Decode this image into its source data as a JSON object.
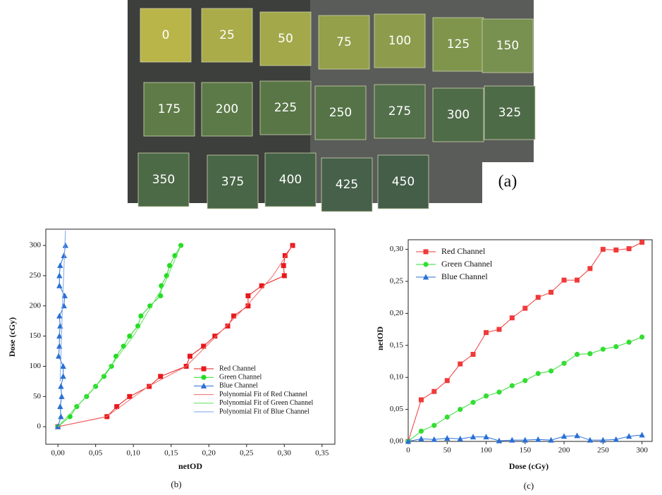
{
  "photo": {
    "labels": [
      "0",
      "25",
      "50",
      "75",
      "100",
      "125",
      "150",
      "175",
      "200",
      "225",
      "250",
      "275",
      "300",
      "325",
      "350",
      "375",
      "400",
      "425",
      "450"
    ],
    "caption": "(a)"
  },
  "chart_data": [
    {
      "type": "line",
      "caption": "(b)",
      "x_label": "netOD",
      "y_label": "Dose (cGy)",
      "xlim": [
        -0.016,
        0.367
      ],
      "ylim": [
        -29,
        327
      ],
      "xticks": [
        {
          "value": 0,
          "label": "0,00"
        },
        {
          "value": 0.05,
          "label": "0,05"
        },
        {
          "value": 0.1,
          "label": "0,10"
        },
        {
          "value": 0.15,
          "label": "0,15"
        },
        {
          "value": 0.2,
          "label": "0,20"
        },
        {
          "value": 0.25,
          "label": "0,25"
        },
        {
          "value": 0.3,
          "label": "0,30"
        },
        {
          "value": 0.35,
          "label": "0,35"
        }
      ],
      "yticks": [
        0,
        50,
        100,
        150,
        200,
        250,
        300
      ],
      "legend": "lower right",
      "series": [
        {
          "name": "Red Channel",
          "color": "#e8191c",
          "marker": "square",
          "x": [
            0,
            0.065,
            0.078,
            0.095,
            0.121,
            0.136,
            0.17,
            0.175,
            0.193,
            0.208,
            0.225,
            0.233,
            0.252,
            0.252,
            0.27,
            0.3,
            0.299,
            0.301,
            0.311
          ],
          "values": [
            0,
            16.7,
            33.3,
            50,
            66.7,
            83.3,
            100,
            116.7,
            133.3,
            150,
            166.7,
            183.3,
            200,
            216.7,
            233.3,
            250,
            266.7,
            283.3,
            300
          ]
        },
        {
          "name": "Green Channel",
          "color": "#22dd22",
          "marker": "circle",
          "x": [
            0,
            0.016,
            0.025,
            0.038,
            0.05,
            0.061,
            0.071,
            0.077,
            0.087,
            0.095,
            0.106,
            0.11,
            0.122,
            0.136,
            0.137,
            0.144,
            0.148,
            0.155,
            0.163
          ],
          "values": [
            0,
            16.7,
            33.3,
            50,
            66.7,
            83.3,
            100,
            116.7,
            133.3,
            150,
            166.7,
            183.3,
            200,
            216.7,
            233.3,
            250,
            266.7,
            283.3,
            300
          ]
        },
        {
          "name": "Blue Channel",
          "color": "#2a6fd6",
          "marker": "triangle",
          "x": [
            0,
            0.004,
            0.003,
            0.005,
            0.004,
            0.007,
            0.007,
            0.001,
            0.002,
            0.002,
            0.003,
            0.002,
            0.008,
            0.009,
            0.002,
            0.002,
            0.003,
            0.008,
            0.01
          ],
          "values": [
            0,
            16.7,
            33.3,
            50,
            66.7,
            83.3,
            100,
            116.7,
            133.3,
            150,
            166.7,
            183.3,
            200,
            216.7,
            233.3,
            250,
            266.7,
            283.3,
            300
          ]
        },
        {
          "name": "Polynomial Fit of Red Channel",
          "color": "#f26a6a",
          "x": [
            0,
            0.065,
            0.12,
            0.17,
            0.21,
            0.25,
            0.285,
            0.311
          ],
          "values": [
            0,
            17,
            67,
            100,
            150,
            200,
            250,
            300
          ]
        },
        {
          "name": "Polynomial Fit of Green Channel",
          "color": "#5be35b",
          "x": [
            0,
            0.05,
            0.1,
            0.14,
            0.163
          ],
          "values": [
            0,
            67,
            150,
            233,
            300
          ]
        },
        {
          "name": "Polynomial Fit of Blue Channel",
          "color": "#7aa6e8",
          "x": [
            0.003,
            0.006,
            0.01
          ],
          "values": [
            75,
            200,
            325
          ]
        }
      ]
    },
    {
      "type": "line",
      "caption": "(c)",
      "x_label": "Dose (cGy)",
      "y_label": "netOD",
      "x": [
        0,
        16.7,
        33.3,
        50,
        66.7,
        83.3,
        100,
        116.7,
        133.3,
        150,
        166.7,
        183.3,
        200,
        216.7,
        233.3,
        250,
        266.7,
        283.3,
        300
      ],
      "xlim": [
        0,
        313
      ],
      "ylim": [
        0,
        0.315
      ],
      "xticks": [
        0,
        50,
        100,
        150,
        200,
        250,
        300
      ],
      "yticks": [
        {
          "value": 0,
          "label": "0,00"
        },
        {
          "value": 0.05,
          "label": "0,05"
        },
        {
          "value": 0.1,
          "label": "0,10"
        },
        {
          "value": 0.15,
          "label": "0,15"
        },
        {
          "value": 0.2,
          "label": "0,20"
        },
        {
          "value": 0.25,
          "label": "0,25"
        },
        {
          "value": 0.3,
          "label": "0,30"
        }
      ],
      "legend": "upper left",
      "series": [
        {
          "name": "Red Channel",
          "color": "#f03a3a",
          "marker": "square",
          "values": [
            0,
            0.065,
            0.078,
            0.095,
            0.121,
            0.136,
            0.17,
            0.175,
            0.193,
            0.208,
            0.225,
            0.233,
            0.252,
            0.252,
            0.27,
            0.3,
            0.299,
            0.301,
            0.311
          ]
        },
        {
          "name": "Green Channel",
          "color": "#33dd33",
          "marker": "circle",
          "values": [
            0,
            0.016,
            0.025,
            0.038,
            0.05,
            0.061,
            0.071,
            0.077,
            0.087,
            0.095,
            0.106,
            0.11,
            0.122,
            0.136,
            0.137,
            0.144,
            0.148,
            0.155,
            0.163
          ]
        },
        {
          "name": "Blue Channel",
          "color": "#2a6fd6",
          "marker": "triangle",
          "values": [
            0,
            0.004,
            0.003,
            0.005,
            0.004,
            0.007,
            0.007,
            0.001,
            0.002,
            0.002,
            0.003,
            0.002,
            0.008,
            0.009,
            0.002,
            0.002,
            0.003,
            0.008,
            0.01
          ]
        }
      ]
    }
  ]
}
